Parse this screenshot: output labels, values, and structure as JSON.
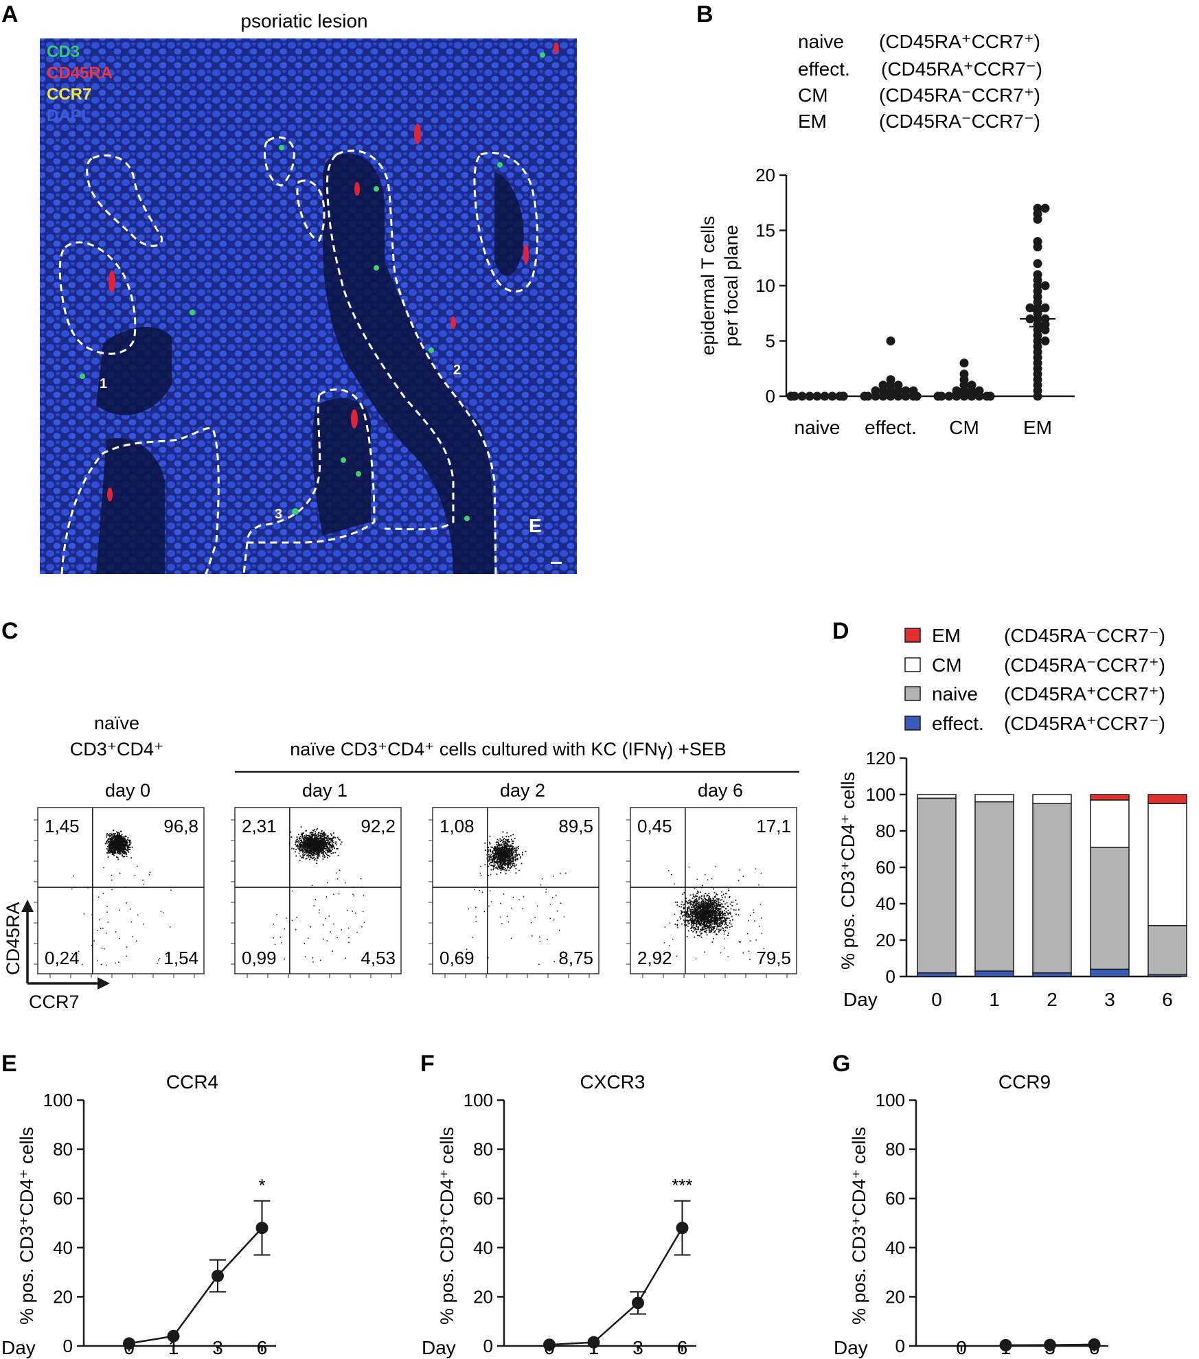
{
  "panel_letters": {
    "A": "A",
    "B": "B",
    "C": "C",
    "D": "D",
    "E": "E",
    "F": "F",
    "G": "G"
  },
  "panel_a": {
    "title": "psoriatic lesion",
    "channels": [
      {
        "label": "CD3",
        "color": "#22c55e"
      },
      {
        "label": "CD45RA",
        "color": "#ef3340"
      },
      {
        "label": "CCR7",
        "color": "#f5e53a"
      },
      {
        "label": "DAPI",
        "color": "#3d5bd9"
      }
    ],
    "region_labels": [
      "1",
      "2",
      "3"
    ],
    "epidermis_label": "E"
  },
  "panel_b": {
    "legend": [
      {
        "name": "naive",
        "sup": "(CD45RA⁺CCR7⁺)"
      },
      {
        "name": "effect.",
        "sup": "(CD45RA⁺CCR7⁻)"
      },
      {
        "name": "CM",
        "sup": "(CD45RA⁻CCR7⁺)"
      },
      {
        "name": "EM",
        "sup": "(CD45RA⁻CCR7⁻)"
      }
    ]
  },
  "panel_c": {
    "left_header_line1": "naïve",
    "left_header_line2": "CD3⁺CD4⁺",
    "group_header": "naïve CD3⁺CD4⁺ cells cultured with KC (IFNγ) +SEB",
    "y_axis": "CD45RA",
    "x_axis": "CCR7",
    "plots": [
      {
        "day": "day 0",
        "tl": "1,45",
        "tr": "96,8",
        "bl": "0,24",
        "br": "1,54"
      },
      {
        "day": "day 1",
        "tl": "2,31",
        "tr": "92,2",
        "bl": "0,99",
        "br": "4,53"
      },
      {
        "day": "day 2",
        "tl": "1,08",
        "tr": "89,5",
        "bl": "0,69",
        "br": "8,75"
      },
      {
        "day": "day 6",
        "tl": "0,45",
        "tr": "17,1",
        "bl": "2,92",
        "br": "79,5"
      }
    ]
  },
  "panel_d_legend": [
    {
      "name": "EM",
      "sup": "(CD45RA⁻CCR7⁻)",
      "color": "#e03131"
    },
    {
      "name": "CM",
      "sup": "(CD45RA⁻CCR7⁺)",
      "color": "#ffffff"
    },
    {
      "name": "naive",
      "sup": "(CD45RA⁺CCR7⁺)",
      "color": "#b3b3b3"
    },
    {
      "name": "effect.",
      "sup": "(CD45RA⁺CCR7⁻)",
      "color": "#3b5bb8"
    }
  ],
  "chart_data": [
    {
      "panel": "B",
      "type": "scatter",
      "ylabel": "epidermal T cells per focal plane",
      "categories": [
        "naive",
        "effect.",
        "CM",
        "EM"
      ],
      "ylim": [
        0,
        20
      ],
      "yticks": [
        0,
        5,
        10,
        15,
        20
      ],
      "mean": [
        0,
        0.4,
        0.25,
        7
      ],
      "sem": [
        0,
        0.15,
        0.12,
        0.7
      ],
      "points": [
        [
          0,
          0,
          0,
          0,
          0,
          0,
          0,
          0,
          0,
          0,
          0,
          0,
          0,
          0,
          0,
          0,
          0,
          0,
          0,
          0
        ],
        [
          5,
          1.5,
          1,
          1,
          1,
          0.5,
          0.5,
          0.5,
          0.5,
          0.5,
          0.5,
          0,
          0,
          0,
          0,
          0,
          0,
          0,
          0,
          0,
          0,
          0,
          0
        ],
        [
          3,
          2,
          1.5,
          1,
          1,
          0.5,
          0.5,
          0.5,
          0.5,
          0,
          0,
          0,
          0,
          0,
          0,
          0,
          0,
          0,
          0,
          0
        ],
        [
          17,
          17,
          16.5,
          16,
          14,
          13.5,
          12,
          11,
          10.5,
          10,
          10,
          9.5,
          9,
          8.5,
          8,
          8,
          8,
          7.5,
          7,
          7,
          7,
          6.5,
          6.5,
          6,
          6,
          5.5,
          5,
          5,
          4.5,
          4,
          3.5,
          3,
          2.5,
          2,
          1.5,
          1,
          0.5,
          0
        ]
      ]
    },
    {
      "panel": "D",
      "type": "bar",
      "stacked": true,
      "xlabel": "Day",
      "ylabel": "% pos. CD3⁺CD4⁺ cells",
      "categories": [
        "0",
        "1",
        "2",
        "3",
        "6"
      ],
      "ylim": [
        0,
        120
      ],
      "yticks": [
        0,
        20,
        40,
        60,
        80,
        100,
        120
      ],
      "series": [
        {
          "name": "effect.",
          "values": [
            2,
            3,
            2,
            4,
            1
          ]
        },
        {
          "name": "naive",
          "values": [
            96,
            93,
            93,
            67,
            27
          ]
        },
        {
          "name": "CM",
          "values": [
            2,
            4,
            5,
            26,
            67
          ]
        },
        {
          "name": "EM",
          "values": [
            0,
            0,
            0,
            3,
            5
          ]
        }
      ]
    },
    {
      "panel": "E",
      "type": "line",
      "title": "CCR4",
      "xlabel": "Day",
      "ylabel": "% pos. CD3⁺CD4⁺ cells",
      "x": [
        "0",
        "1",
        "3",
        "6"
      ],
      "ylim": [
        0,
        100
      ],
      "yticks": [
        0,
        20,
        40,
        60,
        80,
        100
      ],
      "values": [
        1,
        4,
        28.5,
        48
      ],
      "err": [
        0.5,
        0.5,
        6.5,
        11
      ],
      "annotation": "*"
    },
    {
      "panel": "F",
      "type": "line",
      "title": "CXCR3",
      "xlabel": "Day",
      "ylabel": "% pos. CD3⁺CD4⁺ cells",
      "x": [
        "0",
        "1",
        "3",
        "6"
      ],
      "ylim": [
        0,
        100
      ],
      "yticks": [
        0,
        20,
        40,
        60,
        80,
        100
      ],
      "values": [
        0.5,
        1.5,
        17.5,
        48
      ],
      "err": [
        0.3,
        0.5,
        4.5,
        11
      ],
      "annotation": "***"
    },
    {
      "panel": "G",
      "type": "line",
      "title": "CCR9",
      "xlabel": "Day",
      "ylabel": "% pos. CD3⁺CD4⁺ cells",
      "x": [
        "0",
        "1",
        "3",
        "6"
      ],
      "ylim": [
        0,
        100
      ],
      "yticks": [
        0,
        20,
        40,
        60,
        80,
        100
      ],
      "values": [
        null,
        0.3,
        0.4,
        0.6
      ],
      "err": [
        0,
        0.2,
        0.2,
        0.3
      ],
      "annotation": ""
    }
  ]
}
